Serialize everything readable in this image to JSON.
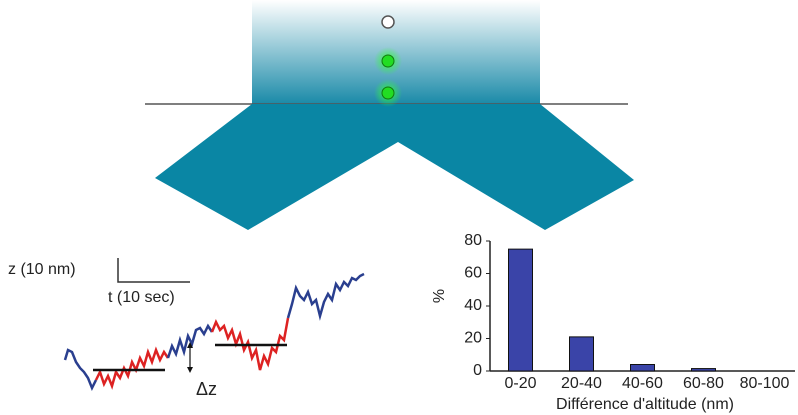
{
  "chart_data": {
    "type": "bar",
    "categories": [
      "0-20",
      "20-40",
      "40-60",
      "60-80",
      "80-100"
    ],
    "values": [
      75,
      21,
      4,
      1.5,
      0
    ],
    "color": "#3a44a8",
    "ylim": [
      0,
      80
    ],
    "yticks": [
      0,
      20,
      40,
      60,
      80
    ],
    "ylabel": "%",
    "xlabel": "Différence d'altitude (nm)"
  },
  "diagram": {
    "z_scale": "z (10 nm)",
    "t_scale": "t (10 sec)",
    "delta_label": "Δz"
  }
}
